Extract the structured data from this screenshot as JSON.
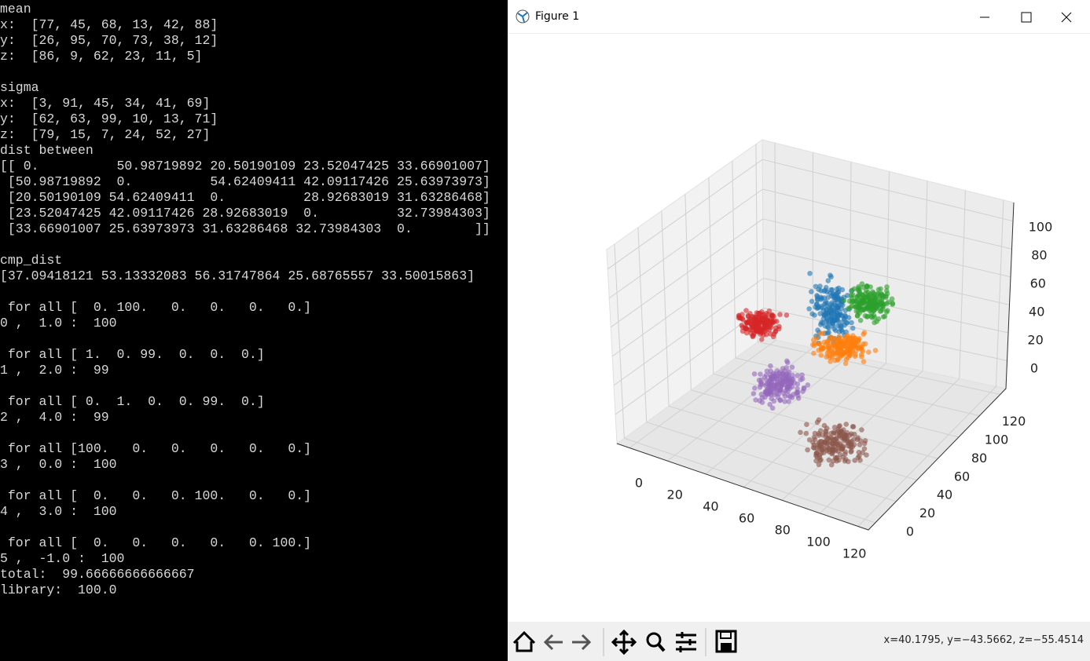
{
  "console": {
    "blocks": [
      [
        "mean",
        "x:  [77, 45, 68, 13, 42, 88]",
        "y:  [26, 95, 70, 73, 38, 12]",
        "z:  [86, 9, 62, 23, 11, 5]"
      ],
      [
        "sigma",
        "x:  [3, 91, 45, 34, 41, 69]",
        "y:  [62, 63, 99, 10, 13, 71]",
        "z:  [79, 15, 7, 24, 52, 27]",
        "dist between",
        "[[ 0.          50.98719892 20.50190109 23.52047425 33.66901007]",
        " [50.98719892  0.          54.62409411 42.09117426 25.63973973]",
        " [20.50190109 54.62409411  0.          28.92683019 31.63286468]",
        " [23.52047425 42.09117426 28.92683019  0.          32.73984303]",
        " [33.66901007 25.63973973 31.63286468 32.73984303  0.        ]]"
      ],
      [
        "cmp_dist",
        "[37.09418121 53.13332083 56.31747864 25.68765557 33.50015863]"
      ],
      [
        " for all [  0. 100.   0.   0.   0.   0.]",
        "0 ,  1.0 :  100"
      ],
      [
        " for all [ 1.  0. 99.  0.  0.  0.]",
        "1 ,  2.0 :  99"
      ],
      [
        " for all [ 0.  1.  0.  0. 99.  0.]",
        "2 ,  4.0 :  99"
      ],
      [
        " for all [100.   0.   0.   0.   0.   0.]",
        "3 ,  0.0 :  100"
      ],
      [
        " for all [  0.   0.   0. 100.   0.   0.]",
        "4 ,  3.0 :  100"
      ],
      [
        " for all [  0.   0.   0.   0.   0. 100.]",
        "5 ,  -1.0 :  100",
        "total:  99.66666666666667",
        "library:  100.0"
      ]
    ]
  },
  "figure": {
    "title": "Figure 1",
    "x_tick_labels": [
      "0",
      "20",
      "40",
      "60",
      "80",
      "100",
      "120"
    ],
    "y_tick_labels": [
      "0",
      "20",
      "40",
      "60",
      "80",
      "100",
      "120"
    ],
    "z_tick_labels": [
      "0",
      "20",
      "40",
      "60",
      "80",
      "100"
    ],
    "status": "x=40.1795, y=−43.5662, z=−55.4514"
  }
}
